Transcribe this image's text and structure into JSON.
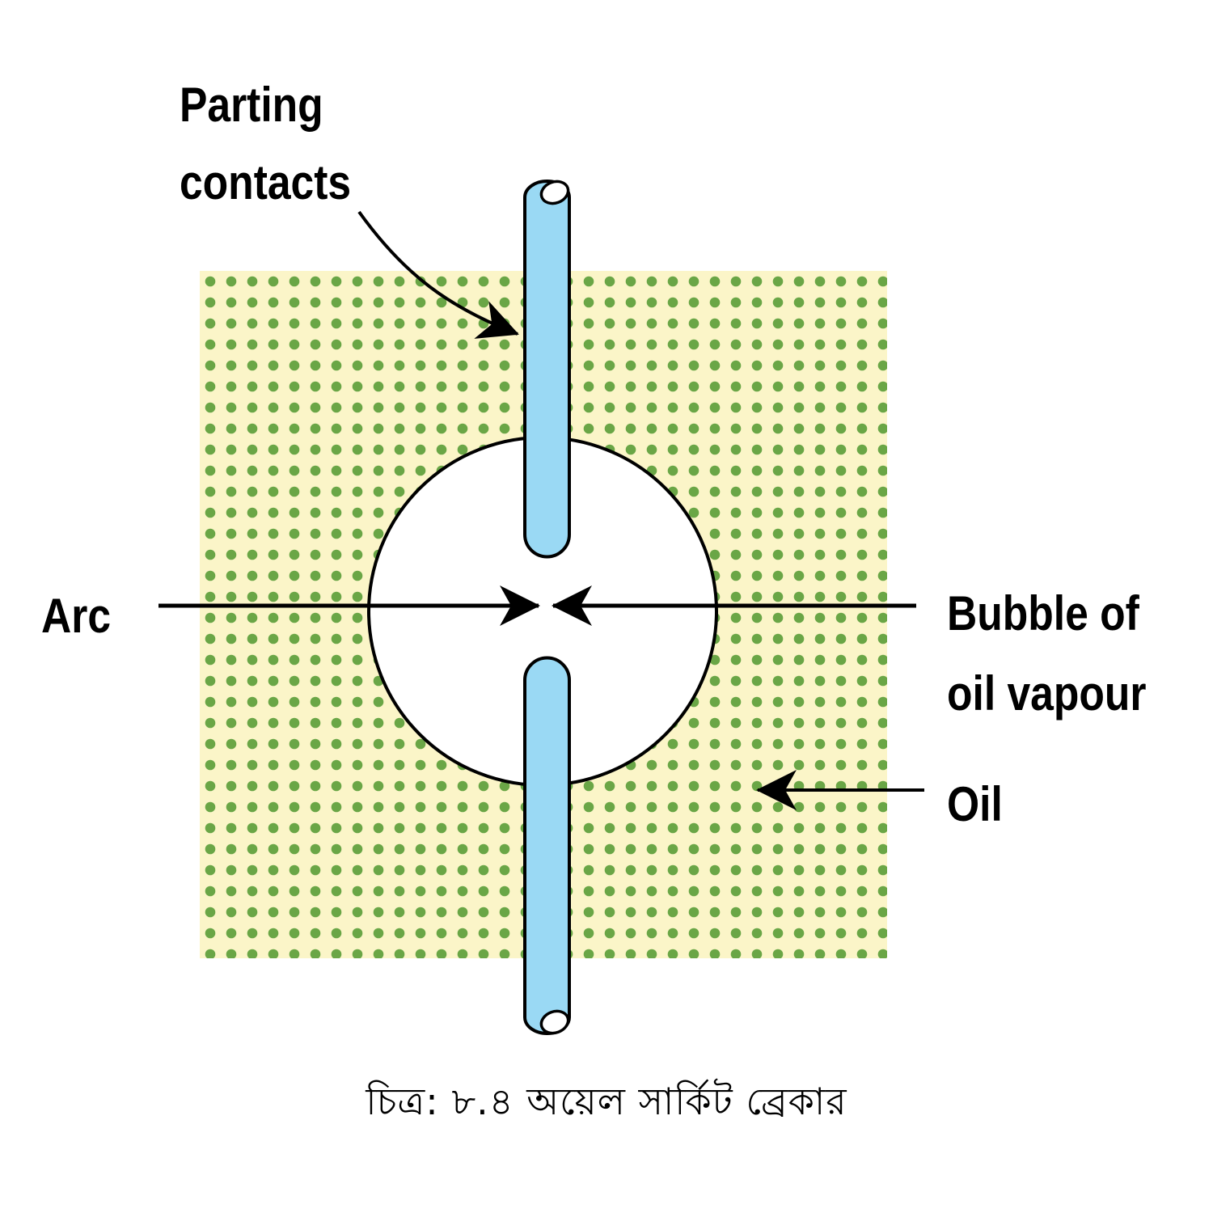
{
  "labels": {
    "parting_contacts_line1": "Parting",
    "parting_contacts_line2": "contacts",
    "arc": "Arc",
    "bubble_line1": "Bubble of",
    "bubble_line2": "oil vapour",
    "oil": "Oil"
  },
  "caption": "চিত্র: ৮.৪  অয়েল সার্কিট ব্রেকার",
  "colors": {
    "oil_background": "#fbf5c8",
    "oil_dots": "#6aa646",
    "contact_fill": "#9ad9f4",
    "outline": "#000000",
    "bubble_fill": "#ffffff"
  }
}
